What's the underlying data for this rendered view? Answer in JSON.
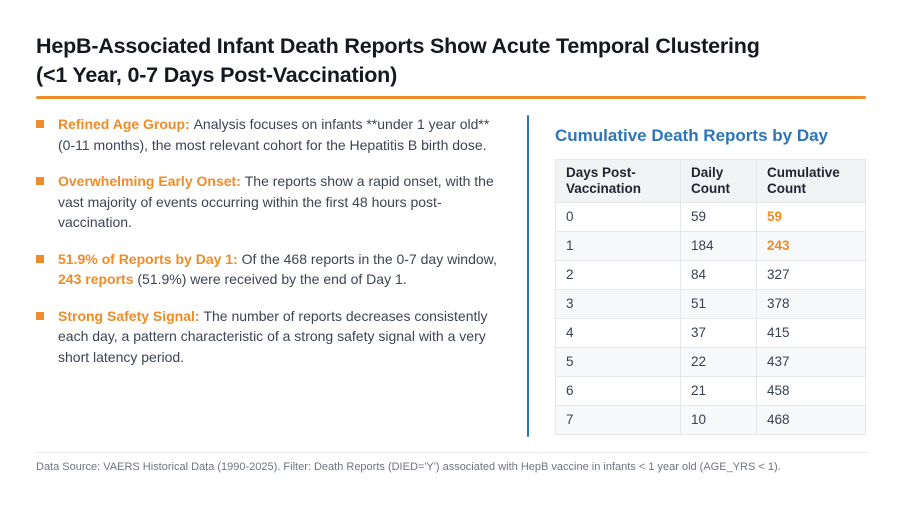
{
  "colors": {
    "accent_orange": "#EE8C28",
    "accent_blue": "#2E75B6"
  },
  "title": {
    "line1": "HepB-Associated Infant Death Reports Show Acute Temporal Clustering",
    "line2": "(<1 Year, 0-7 Days Post-Vaccination)"
  },
  "bullets": [
    {
      "segments": [
        {
          "style": "label",
          "text": "Refined Age Group: "
        },
        {
          "style": "normal",
          "text": "Analysis focuses on infants **under 1 year old** (0-11 months), the most relevant cohort for the Hepatitis B birth dose."
        }
      ]
    },
    {
      "segments": [
        {
          "style": "label",
          "text": "Overwhelming Early Onset: "
        },
        {
          "style": "normal",
          "text": "The reports show a rapid onset, with the vast majority of events occurring within the first 48 hours post-vaccination."
        }
      ]
    },
    {
      "segments": [
        {
          "style": "label",
          "text": "51.9% of Reports by Day 1: "
        },
        {
          "style": "normal",
          "text": "Of the 468 reports in the 0-7 day window, "
        },
        {
          "style": "highlight",
          "text": "243 reports"
        },
        {
          "style": "normal",
          "text": " (51.9%) were received by the end of Day 1."
        }
      ]
    },
    {
      "segments": [
        {
          "style": "label",
          "text": "Strong Safety Signal: "
        },
        {
          "style": "normal",
          "text": "The number of reports decreases consistently each day, a pattern characteristic of a strong safety signal with a very short latency period."
        }
      ]
    }
  ],
  "right": {
    "heading": "Cumulative Death Reports by Day",
    "table": {
      "headers": [
        "Days Post-Vaccination",
        "Daily Count",
        "Cumulative Count"
      ],
      "rows": [
        {
          "day": "0",
          "daily": "59",
          "cumulative": "59",
          "highlight": true
        },
        {
          "day": "1",
          "daily": "184",
          "cumulative": "243",
          "highlight": true
        },
        {
          "day": "2",
          "daily": "84",
          "cumulative": "327",
          "highlight": false
        },
        {
          "day": "3",
          "daily": "51",
          "cumulative": "378",
          "highlight": false
        },
        {
          "day": "4",
          "daily": "37",
          "cumulative": "415",
          "highlight": false
        },
        {
          "day": "5",
          "daily": "22",
          "cumulative": "437",
          "highlight": false
        },
        {
          "day": "6",
          "daily": "21",
          "cumulative": "458",
          "highlight": false
        },
        {
          "day": "7",
          "daily": "10",
          "cumulative": "468",
          "highlight": false
        }
      ]
    }
  },
  "footer": {
    "text": "Data Source: VAERS Historical Data (1990-2025). Filter: Death Reports (DIED='Y') associated with HepB vaccine in infants < 1 year old (AGE_YRS < 1)."
  }
}
